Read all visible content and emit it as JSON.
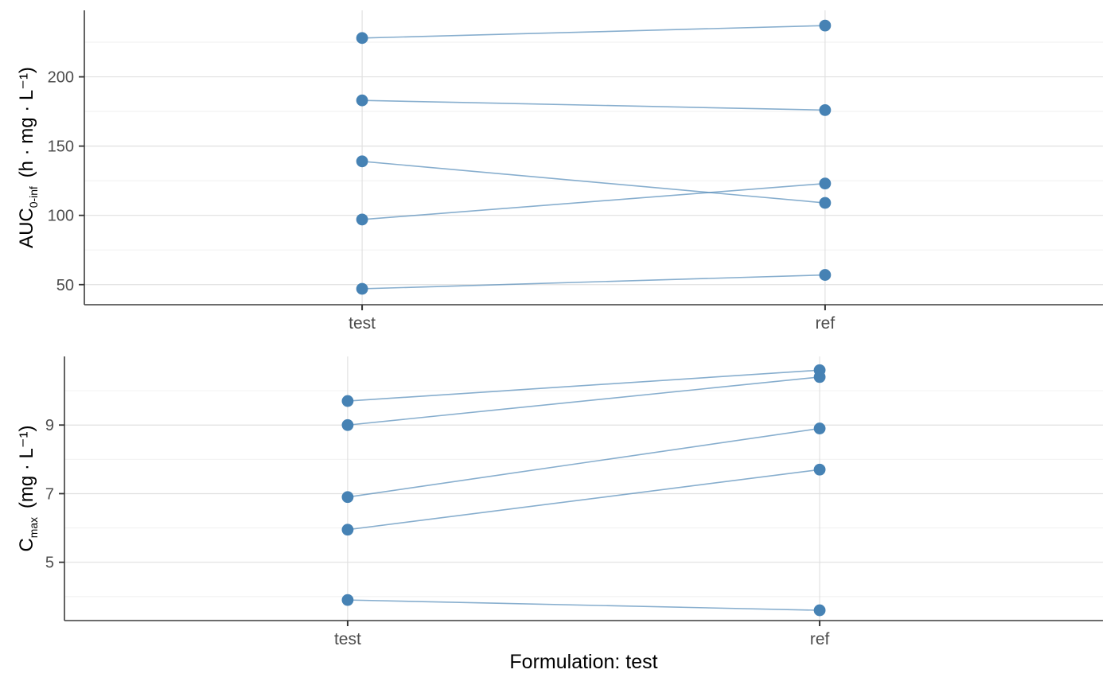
{
  "figure": {
    "kind": "paired-lines bioequivalence plot",
    "categories": [
      "test",
      "ref"
    ]
  },
  "style": {
    "point_color": "#4682b4",
    "line_color": "rgba(70,130,180,0.65)",
    "grid_major_color": "#e0e0e0",
    "grid_minor_color": "#f2f2f2",
    "axis_line_color": "#3c3c3c",
    "tick_mark_color": "#333333",
    "tick_label_color": "#4d4d4d",
    "title_color": "#000000"
  },
  "chart_data": [
    {
      "id": "auc-plot",
      "type": "line",
      "paired": true,
      "categories": [
        "test",
        "ref"
      ],
      "pairs": [
        [
          228,
          237
        ],
        [
          183,
          176
        ],
        [
          139,
          109
        ],
        [
          97,
          123
        ],
        [
          47,
          57
        ]
      ],
      "ylabel": {
        "prefix": "AUC",
        "sub": "0-inf",
        "unit": "(h · mg · L⁻¹)"
      },
      "xlabel": "",
      "yticks": [
        50,
        100,
        150,
        200
      ],
      "ytick_labels": [
        "50",
        "100",
        "150",
        "200"
      ],
      "ylim": [
        35.5,
        248
      ],
      "grid": "major+minor",
      "legend": "none"
    },
    {
      "id": "cmax-plot",
      "type": "line",
      "paired": true,
      "categories": [
        "test",
        "ref"
      ],
      "pairs": [
        [
          9.7,
          10.6
        ],
        [
          9.0,
          10.4
        ],
        [
          6.9,
          8.9
        ],
        [
          5.95,
          7.7
        ],
        [
          3.9,
          3.6
        ]
      ],
      "ylabel": {
        "prefix": "C",
        "sub": "max",
        "unit": "(mg · L⁻¹)"
      },
      "xlabel": "Formulation: test",
      "yticks": [
        5,
        7,
        9
      ],
      "ytick_labels": [
        "5",
        "7",
        "9"
      ],
      "ylim": [
        3.3,
        11.0
      ],
      "grid": "major+minor",
      "legend": "none"
    }
  ]
}
